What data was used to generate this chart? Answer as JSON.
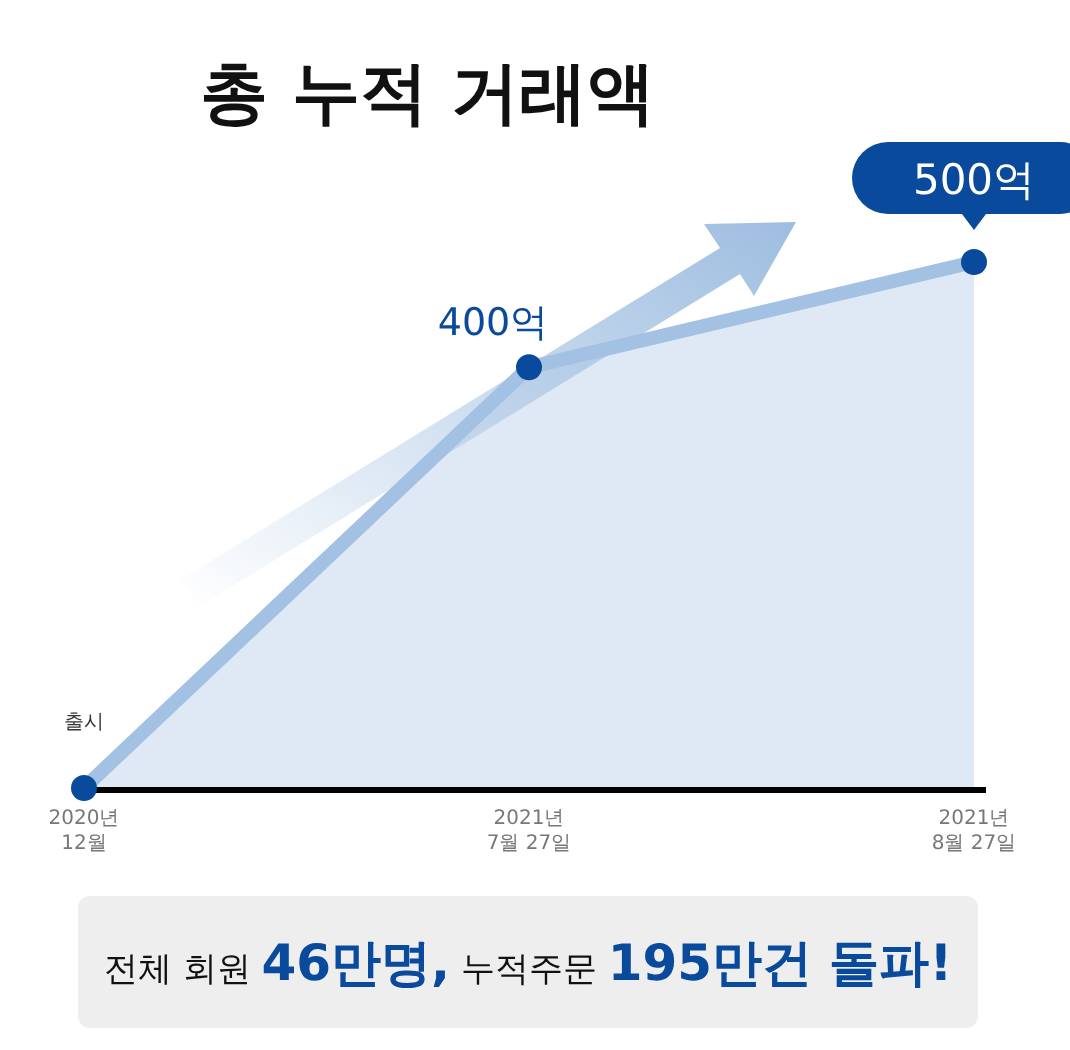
{
  "chart_data": {
    "type": "area",
    "title": "총 누적 거래액",
    "categories": [
      "2020년\n12월",
      "2021년\n7월 27일",
      "2021년\n8월 27일"
    ],
    "series": [
      {
        "color": "#a3c1e2",
        "values": [
          0,
          400,
          500
        ],
        "value_labels": [
          null,
          "400억",
          "500억"
        ]
      }
    ],
    "marker": "circle",
    "annotations": [
      "출시",
      "전체 회원 **46만명,** 누적주문 **195만건 돌파!**"
    ]
  }
}
